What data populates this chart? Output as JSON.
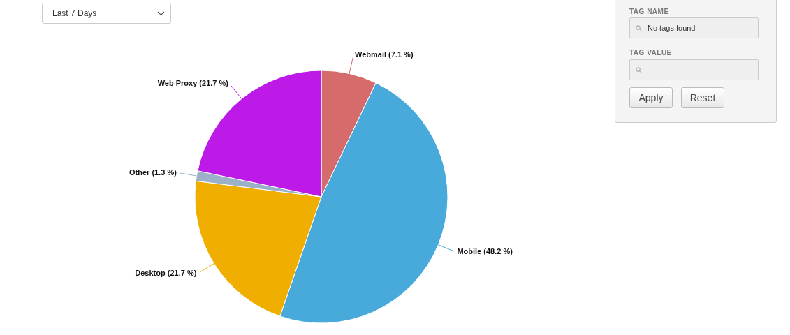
{
  "chart_data": {
    "type": "pie",
    "categories": [
      "Webmail",
      "Mobile",
      "Desktop",
      "Other",
      "Web Proxy"
    ],
    "values": [
      7.1,
      48.2,
      21.7,
      1.3,
      21.7
    ],
    "value_labels": [
      "(7.1 %)",
      "(48.2 %)",
      "(21.7 %)",
      "(1.3 %)",
      "(21.7 %)"
    ],
    "colors": [
      "#d56b6a",
      "#48aadb",
      "#efae00",
      "#9bb0c9",
      "#bd1ae8"
    ],
    "annotations": [
      "Last 7 Days",
      "TAG NAME",
      "No tags found",
      "TAG VALUE",
      "Apply",
      "Reset"
    ]
  }
}
